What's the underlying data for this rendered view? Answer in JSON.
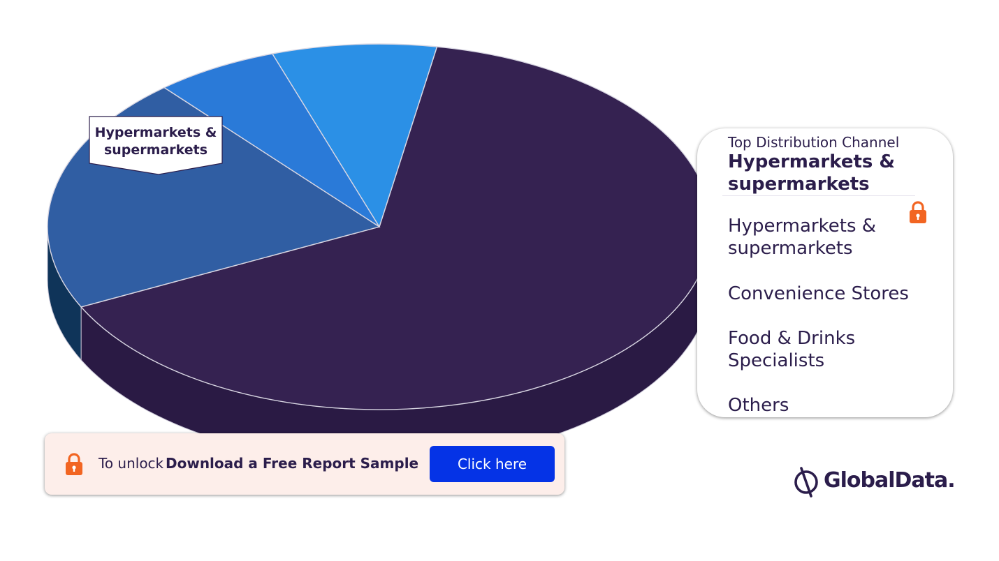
{
  "chart_data": {
    "type": "pie",
    "title": "",
    "categories": [
      "Hypermarkets & supermarkets",
      "Convenience Stores",
      "Food & Drinks Specialists",
      "Others"
    ],
    "values": [
      65,
      21,
      6,
      8
    ],
    "colors": [
      "#352251",
      "#305ea3",
      "#2a7ad8",
      "#2b90e6"
    ],
    "side_colors": [
      "#2a1a44",
      "#0f3459",
      "#0f3459",
      "#0f3459"
    ],
    "callout": "Hypermarkets & supermarkets"
  },
  "legend": {
    "caption": "Top Distribution Channel",
    "top_value": "Hypermarkets & supermarkets",
    "items": [
      "Hypermarkets & supermarkets",
      "Convenience Stores",
      "Food & Drinks Specialists",
      "Others"
    ],
    "lock_icon": "lock-icon",
    "lock_color": "#f26522"
  },
  "unlock": {
    "prefix": "To unlock",
    "strong": "Download a Free Report Sample",
    "button": "Click here",
    "button_color": "#0533e6",
    "lock_icon": "lock-icon",
    "lock_color": "#f26522"
  },
  "brand": {
    "name": "GlobalData.",
    "icon": "globaldata-logo-icon"
  }
}
